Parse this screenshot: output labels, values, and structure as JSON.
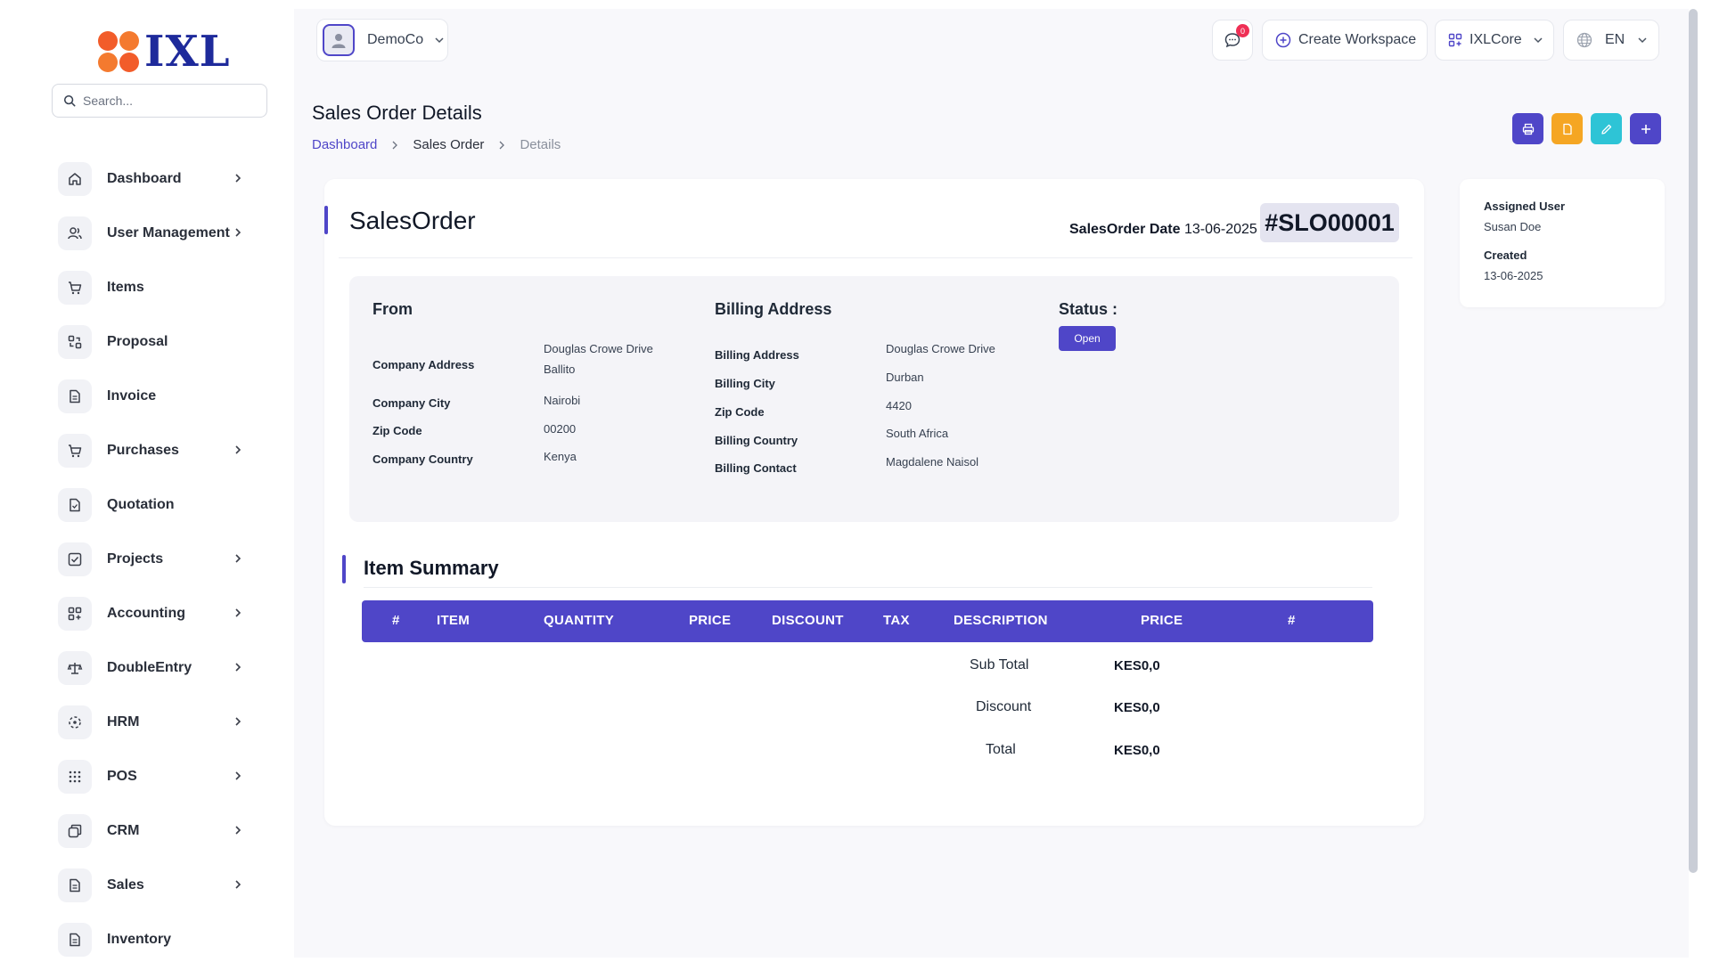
{
  "brand": {
    "logo_text": "IXL"
  },
  "search": {
    "placeholder": "Search..."
  },
  "sidebar": {
    "items": [
      {
        "label": "Dashboard",
        "icon": "home-icon",
        "has_chevron": true
      },
      {
        "label": "User Management",
        "icon": "users-icon",
        "has_chevron": true
      },
      {
        "label": "Items",
        "icon": "cart-icon",
        "has_chevron": false
      },
      {
        "label": "Proposal",
        "icon": "proposal-icon",
        "has_chevron": false
      },
      {
        "label": "Invoice",
        "icon": "file-icon",
        "has_chevron": false
      },
      {
        "label": "Purchases",
        "icon": "cart-icon",
        "has_chevron": true
      },
      {
        "label": "Quotation",
        "icon": "file-icon",
        "has_chevron": false
      },
      {
        "label": "Projects",
        "icon": "checkbox-icon",
        "has_chevron": true
      },
      {
        "label": "Accounting",
        "icon": "grid-icon",
        "has_chevron": true
      },
      {
        "label": "DoubleEntry",
        "icon": "scale-icon",
        "has_chevron": true
      },
      {
        "label": "HRM",
        "icon": "hrm-icon",
        "has_chevron": true
      },
      {
        "label": "POS",
        "icon": "dots-grid-icon",
        "has_chevron": true
      },
      {
        "label": "CRM",
        "icon": "crm-icon",
        "has_chevron": true
      },
      {
        "label": "Sales",
        "icon": "file-icon",
        "has_chevron": true
      },
      {
        "label": "Inventory",
        "icon": "file-icon",
        "has_chevron": false
      }
    ]
  },
  "topbar": {
    "company": "DemoCo",
    "notification_count": "0",
    "create_workspace": "Create Workspace",
    "workspace": "IXLCore",
    "language": "EN"
  },
  "page": {
    "title": "Sales Order Details",
    "breadcrumb": [
      "Dashboard",
      "Sales Order",
      "Details"
    ]
  },
  "order": {
    "heading": "SalesOrder",
    "date_label": "SalesOrder Date",
    "date_value": "13-06-2025",
    "number": "#SLO00001",
    "from": {
      "heading": "From",
      "company_address_label": "Company Address",
      "company_address_line1": "Douglas Crowe Drive",
      "company_address_line2": "Ballito",
      "company_city_label": "Company City",
      "company_city": "Nairobi",
      "zip_label": "Zip Code",
      "zip": "00200",
      "country_label": "Company Country",
      "country": "Kenya"
    },
    "billing": {
      "heading": "Billing Address",
      "address_label": "Billing Address",
      "address": "Douglas Crowe Drive",
      "city_label": "Billing City",
      "city": "Durban",
      "zip_label": "Zip Code",
      "zip": "4420",
      "country_label": "Billing Country",
      "country": "South Africa",
      "contact_label": "Billing Contact",
      "contact": "Magdalene Naisol"
    },
    "status": {
      "heading": "Status :",
      "value": "Open"
    }
  },
  "summary": {
    "title": "Item Summary",
    "columns": [
      "#",
      "ITEM",
      "QUANTITY",
      "PRICE",
      "DISCOUNT",
      "TAX",
      "DESCRIPTION",
      "PRICE",
      "#"
    ],
    "sub_total_label": "Sub Total",
    "sub_total": "KES0,0",
    "discount_label": "Discount",
    "discount": "KES0,0",
    "total_label": "Total",
    "total": "KES0,0"
  },
  "meta": {
    "assigned_user_label": "Assigned User",
    "assigned_user": "Susan Doe",
    "created_label": "Created",
    "created": "13-06-2025"
  },
  "colors": {
    "accent": "#4f46c8",
    "print_button": "#4f46c8",
    "pdf_button": "#f5a623",
    "edit_button": "#2ec4d6",
    "add_button": "#4f46c8",
    "notification_badge": "#ef2f55"
  }
}
